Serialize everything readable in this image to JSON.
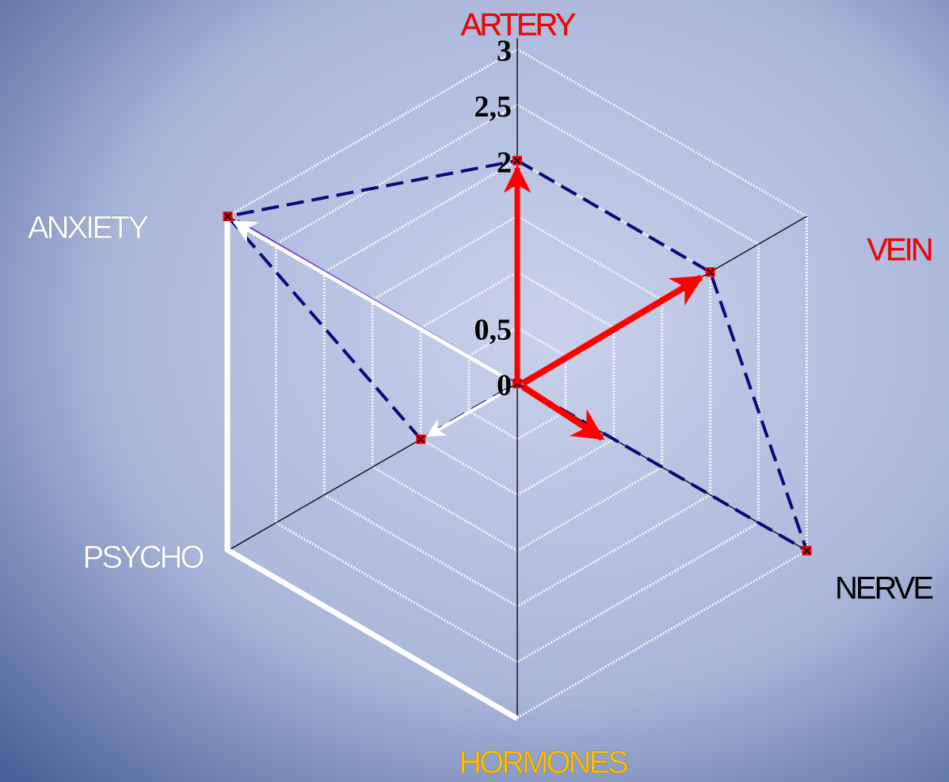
{
  "chart_data": {
    "type": "radar",
    "categories": [
      "ARTERY",
      "VEIN",
      "NERVE",
      "HORMONES",
      "PSYCHO",
      "ANXIETY"
    ],
    "category_colors": [
      "#ff0000",
      "#ff0000",
      "#000000",
      "#ffc000",
      "#ffffff",
      "#ffffff"
    ],
    "series": [
      {
        "color": "#0a0a78",
        "values": [
          2,
          2,
          3,
          0,
          1,
          3
        ]
      }
    ],
    "ylim": [
      0,
      3
    ],
    "yticks": [
      0,
      {
        "value": 0.5,
        "label": "0,5"
      },
      2,
      {
        "value": 2.5,
        "label": "2,5"
      },
      3
    ],
    "grid": true
  }
}
